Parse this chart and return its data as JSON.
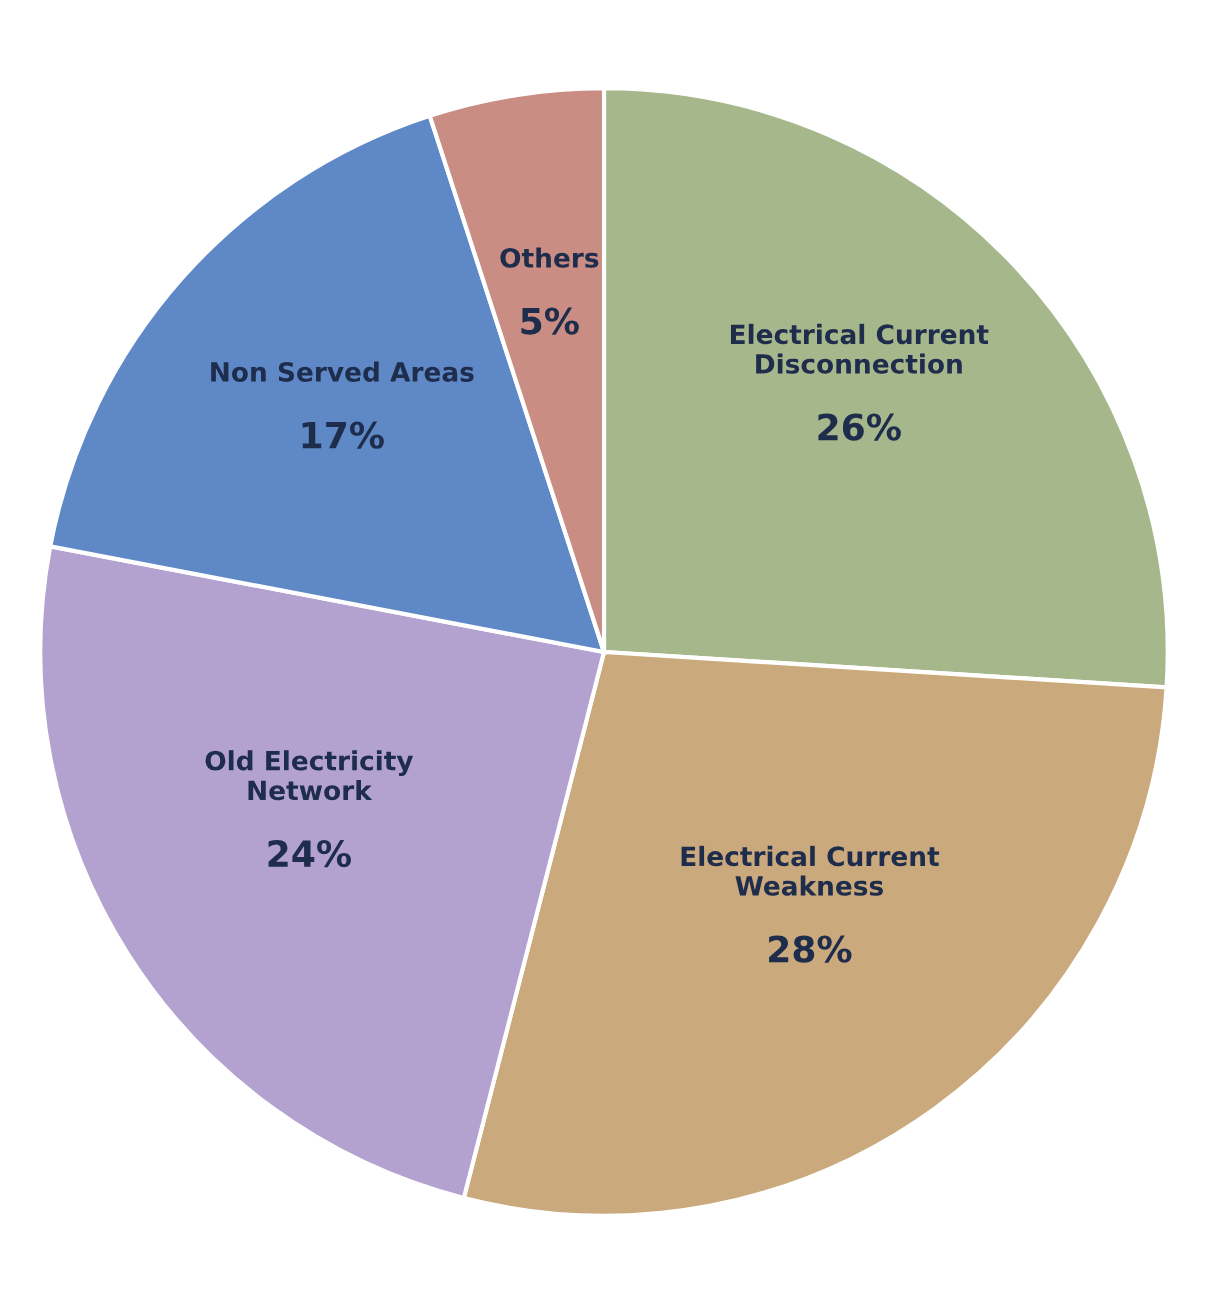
{
  "chart_data": {
    "type": "pie",
    "categories": [
      "Electrical Current\nDisconnection",
      "Electrical Current\nWeakness",
      "Old Electricity\nNetwork",
      "Non Served Areas",
      "Others"
    ],
    "values": [
      26,
      28,
      24,
      17,
      5
    ],
    "value_labels": [
      "26%",
      "28%",
      "24%",
      "17%",
      "5%"
    ],
    "colors": [
      "#a7b78c",
      "#caa97c",
      "#b3a2cf",
      "#5f88c6",
      "#c98d83"
    ]
  }
}
